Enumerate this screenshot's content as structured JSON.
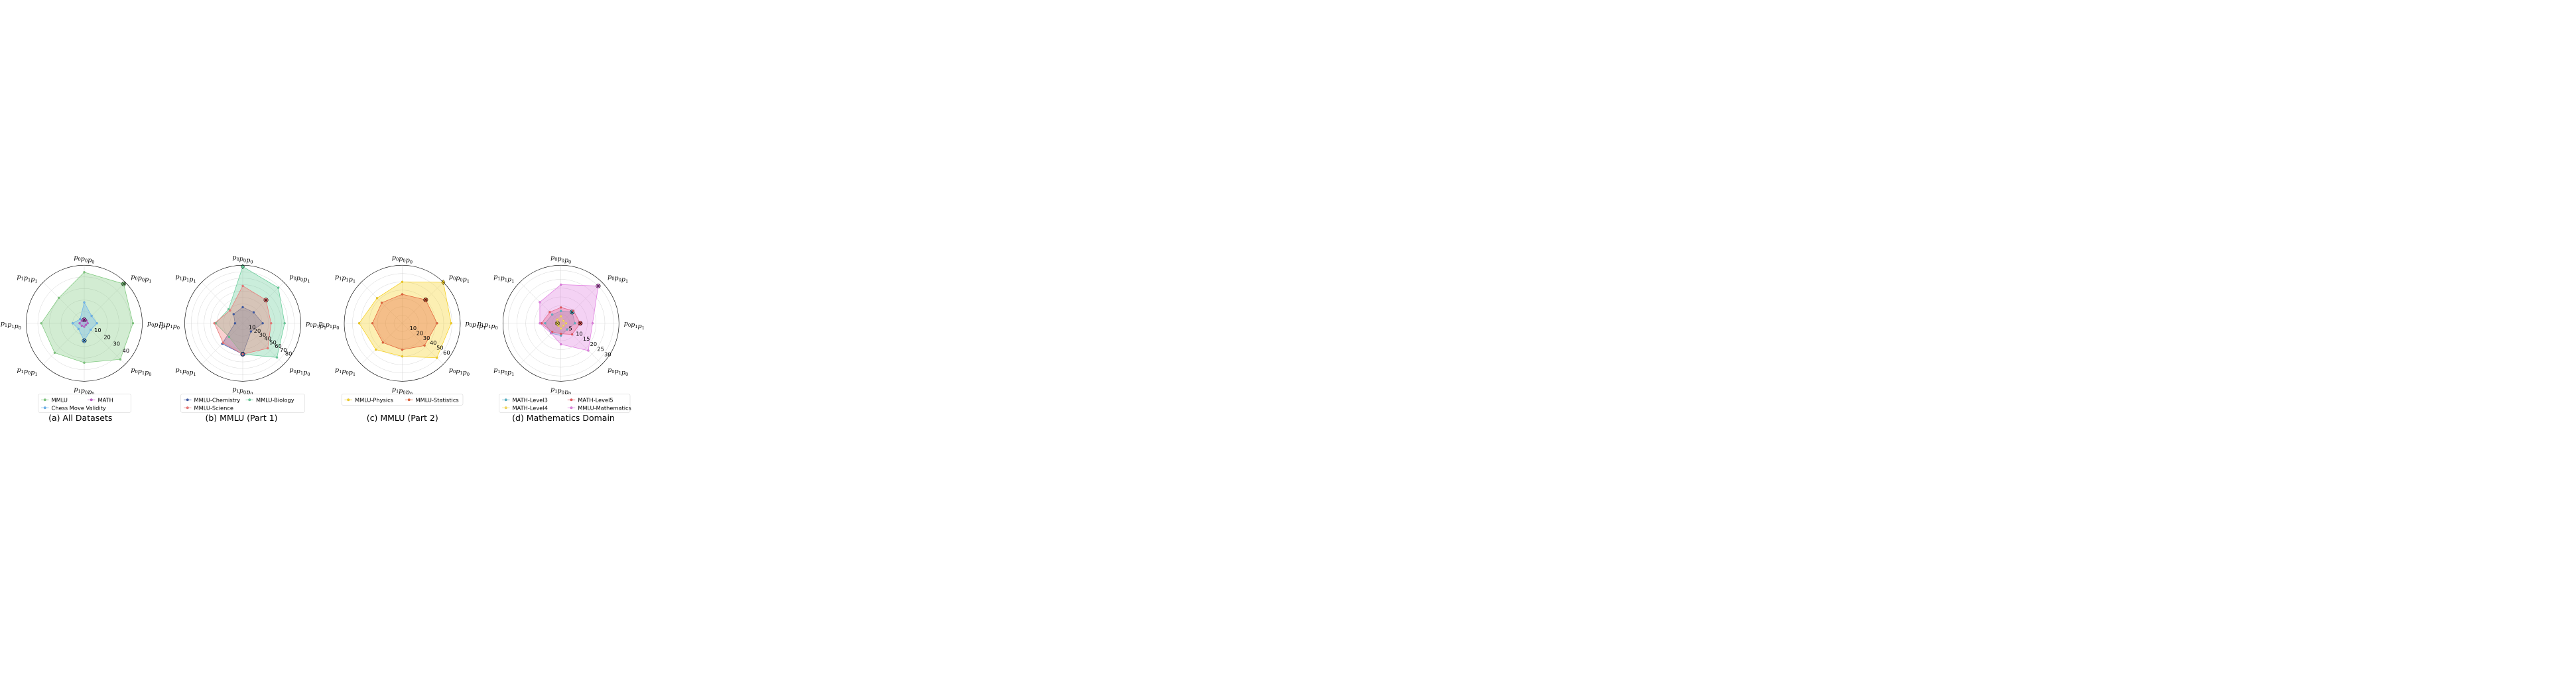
{
  "chart_data": [
    {
      "type": "radar",
      "caption": "(a) All Datasets",
      "axes": [
        "p0p0p0",
        "p0p0p1",
        "p0p1p1",
        "p0p1p0",
        "p1p0p0",
        "p1p0p1",
        "p1p1p0",
        "p1p1p1"
      ],
      "rmax": 50,
      "radial_ticks": [
        10,
        20,
        30,
        40
      ],
      "series": [
        {
          "name": "MMLU",
          "color": "#7fc97f",
          "values": [
            44,
            48,
            42,
            44,
            34,
            36,
            37,
            31
          ],
          "marker_axis": 1
        },
        {
          "name": "MATH",
          "color": "#c060c8",
          "values": [
            3,
            3,
            3,
            2,
            3,
            3,
            4,
            3
          ],
          "marker_axis": 0
        },
        {
          "name": "Chess Move Validity",
          "color": "#6cb4f0",
          "values": [
            18,
            9,
            11,
            8,
            15,
            7,
            10,
            5
          ],
          "marker_axis": 4
        }
      ],
      "legend": {
        "ncol": 2,
        "entries": [
          "MMLU",
          "MATH",
          "Chess Move Validity"
        ]
      }
    },
    {
      "type": "radar",
      "caption": "(b) MMLU (Part 1)",
      "axes": [
        "p0p0p0",
        "p0p0p1",
        "p0p1p1",
        "p0p1p0",
        "p1p0p0",
        "p1p0p1",
        "p1p1p0",
        "p1p1p1"
      ],
      "rmax": 90,
      "radial_ticks": [
        10,
        20,
        30,
        40,
        50,
        60,
        70,
        80
      ],
      "series": [
        {
          "name": "MMLU-Chemistry",
          "color": "#3d5aa8",
          "values": [
            25,
            24,
            31,
            18,
            48,
            45,
            12,
            20
          ],
          "marker_axis": 4
        },
        {
          "name": "MMLU-Biology",
          "color": "#66cc99",
          "values": [
            88,
            78,
            65,
            75,
            48,
            30,
            42,
            31
          ],
          "marker_axis": 0
        },
        {
          "name": "MMLU-Science",
          "color": "#ee7777",
          "values": [
            58,
            51,
            44,
            55,
            48,
            43,
            44,
            28
          ],
          "marker_axis": 1
        }
      ],
      "legend": {
        "ncol": 2,
        "entries": [
          "MMLU-Chemistry",
          "MMLU-Biology",
          "MMLU-Science"
        ]
      }
    },
    {
      "type": "radar",
      "caption": "(c) MMLU (Part 2)",
      "axes": [
        "p0p0p0",
        "p0p0p1",
        "p0p1p1",
        "p0p1p0",
        "p1p0p0",
        "p1p0p1",
        "p1p1p0",
        "p1p1p1"
      ],
      "rmax": 70,
      "radial_ticks": [
        10,
        20,
        30,
        40,
        50,
        60
      ],
      "series": [
        {
          "name": "MMLU-Physics",
          "color": "#f5d023",
          "values": [
            50,
            70,
            59,
            59,
            40,
            45,
            52,
            43
          ],
          "marker_axis": 1
        },
        {
          "name": "MMLU-Statistics",
          "color": "#e4643c",
          "values": [
            35,
            40,
            42,
            38,
            32,
            33,
            36,
            35
          ],
          "marker_axis": 1
        }
      ],
      "legend": {
        "ncol": 2,
        "entries": [
          "MMLU-Physics",
          "MMLU-Statistics"
        ]
      }
    },
    {
      "type": "radar",
      "caption": "(d) Mathematics Domain",
      "axes": [
        "p0p0p0",
        "p0p0p1",
        "p0p1p1",
        "p0p1p0",
        "p1p0p0",
        "p1p0p1",
        "p1p1p0",
        "p1p1p1"
      ],
      "rmax": 33,
      "radial_ticks": [
        5,
        10,
        15,
        20,
        25,
        30
      ],
      "series": [
        {
          "name": "MATH-Level3",
          "color": "#5ab4c8",
          "values": [
            7,
            9,
            8,
            5,
            7,
            8,
            9,
            7
          ],
          "marker_axis": 1
        },
        {
          "name": "MATH-Level5",
          "color": "#e8585c",
          "values": [
            9,
            10,
            11,
            9,
            6,
            7,
            11,
            9
          ],
          "marker_axis": 2
        },
        {
          "name": "MATH-Level4",
          "color": "#f8dc5c",
          "values": [
            4,
            2,
            3,
            2,
            3,
            2,
            2,
            3
          ],
          "marker_axis": 6
        },
        {
          "name": "MMLU-Mathematics",
          "color": "#e07ee0",
          "values": [
            22,
            30,
            18,
            22,
            12,
            8,
            12,
            17
          ],
          "marker_axis": 1
        }
      ],
      "legend": {
        "ncol": 2,
        "entries": [
          "MATH-Level3",
          "MATH-Level5",
          "MATH-Level4",
          "MMLU-Mathematics"
        ]
      }
    }
  ]
}
